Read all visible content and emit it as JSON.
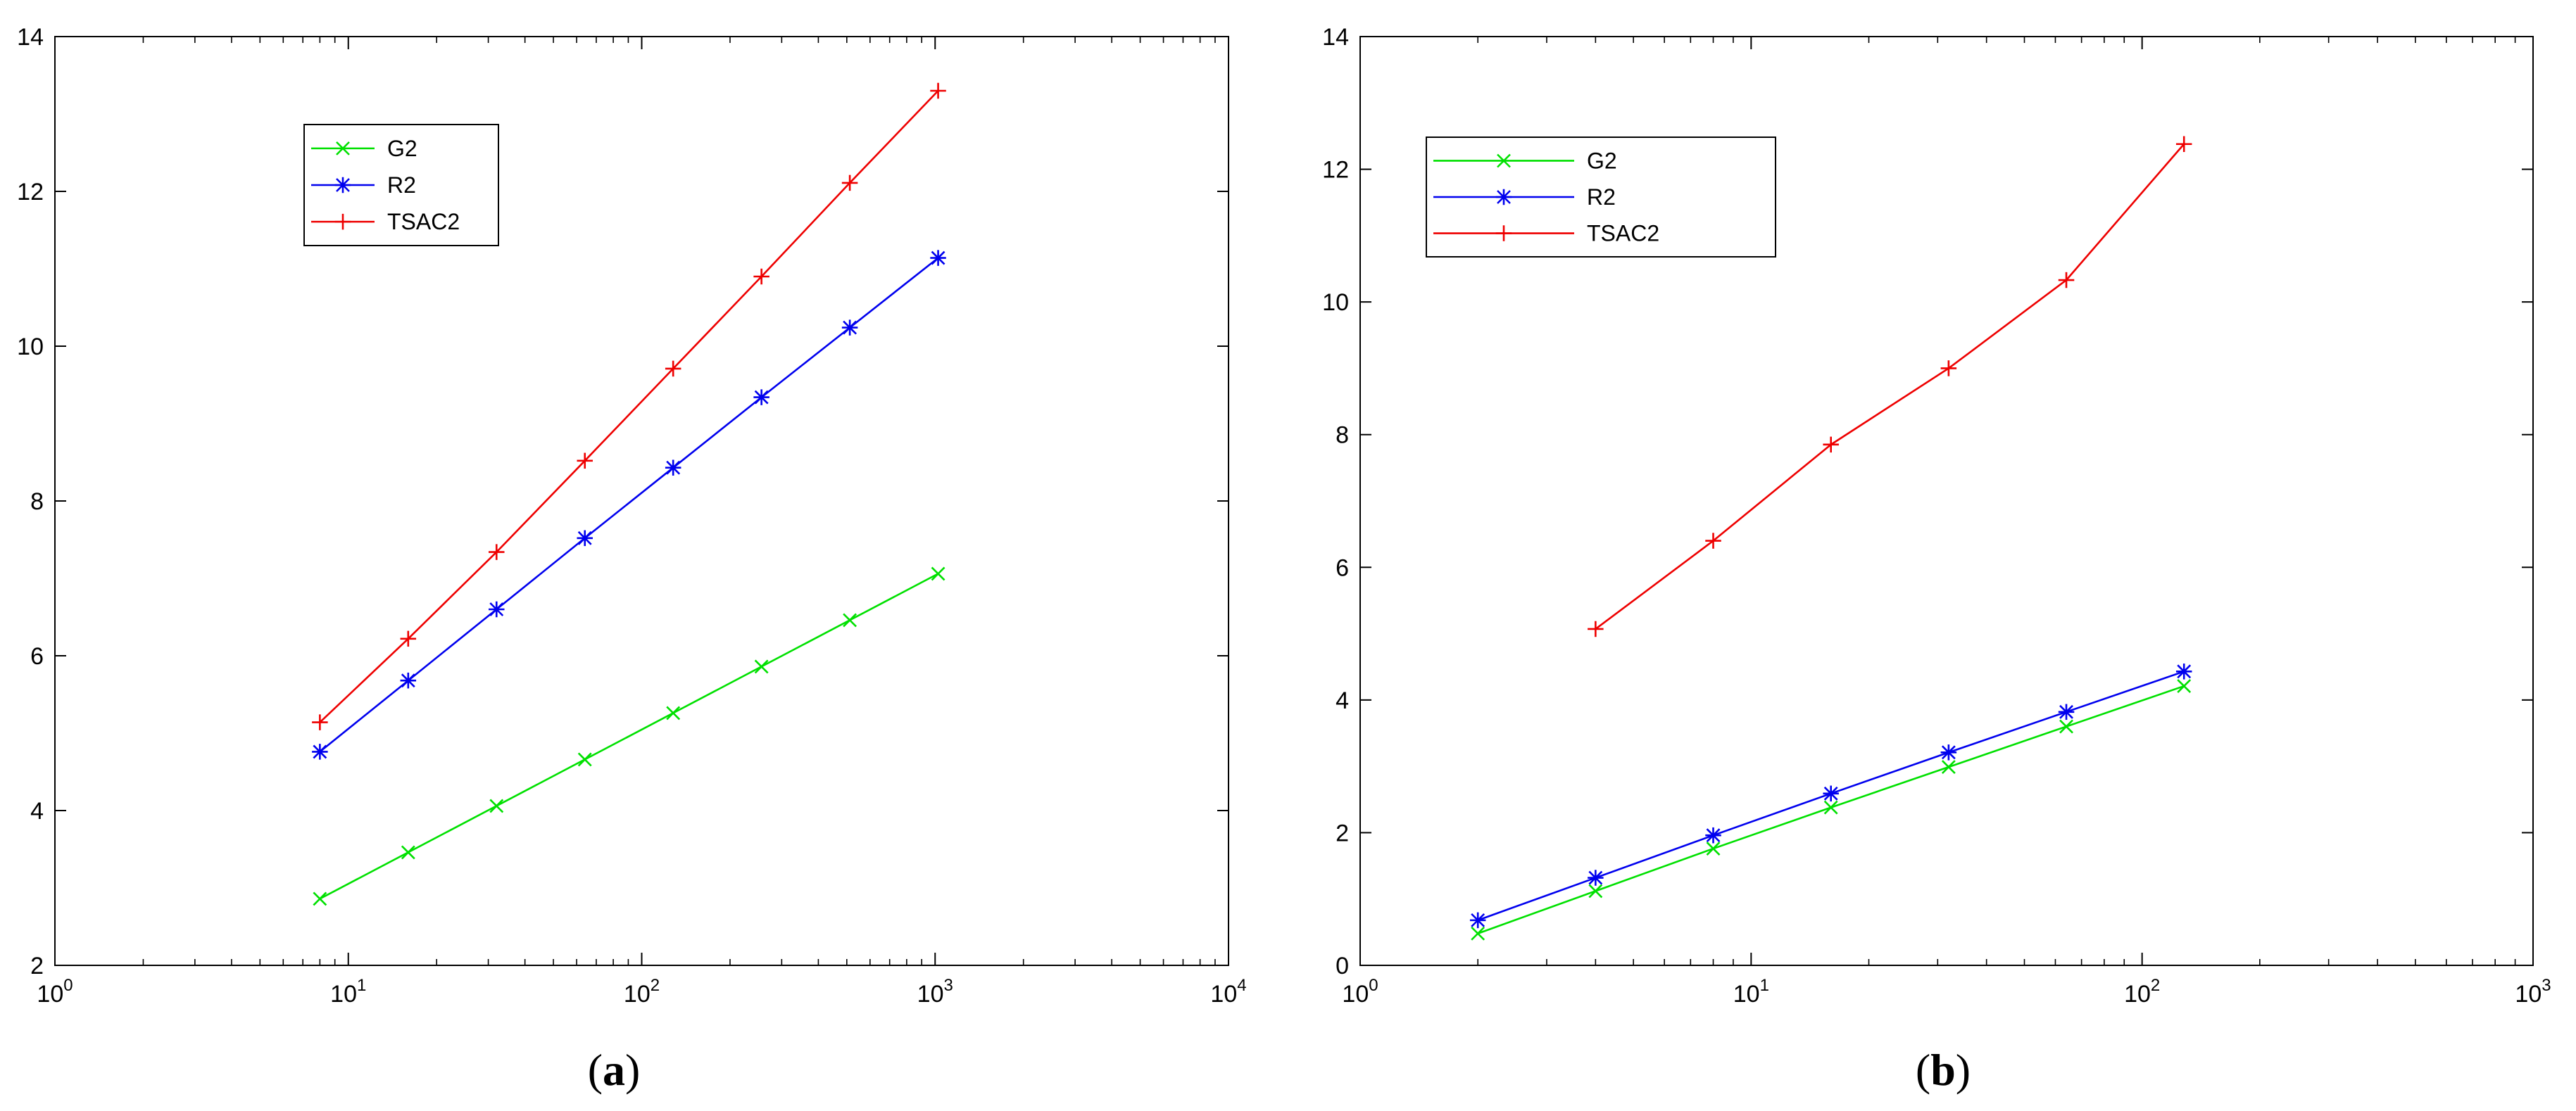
{
  "chart_data": [
    {
      "type": "line",
      "panel_label": "(a)",
      "xscale": "log",
      "xlim": [
        1,
        10000
      ],
      "ylim": [
        2,
        14
      ],
      "x_ticks": [
        1,
        10,
        100,
        1000,
        10000
      ],
      "x_tick_labels": [
        {
          "base": "10",
          "exp": "0"
        },
        {
          "base": "10",
          "exp": "1"
        },
        {
          "base": "10",
          "exp": "2"
        },
        {
          "base": "10",
          "exp": "3"
        },
        {
          "base": "10",
          "exp": "4"
        }
      ],
      "y_ticks": [
        "2",
        "4",
        "6",
        "8",
        "10",
        "12",
        "14"
      ],
      "legend_position": "top-left",
      "grid": false,
      "series": [
        {
          "name": "G2",
          "color": "#00e000",
          "marker": "x",
          "x": [
            8,
            16,
            32,
            64,
            128,
            256,
            512,
            1024
          ],
          "y": [
            2.86,
            3.46,
            4.06,
            4.66,
            5.26,
            5.86,
            6.46,
            7.06
          ]
        },
        {
          "name": "R2",
          "color": "#0000ee",
          "marker": "*",
          "x": [
            8,
            16,
            32,
            64,
            128,
            256,
            512,
            1024
          ],
          "y": [
            4.76,
            5.68,
            6.6,
            7.52,
            8.43,
            9.34,
            10.24,
            11.14
          ]
        },
        {
          "name": "TSAC2",
          "color": "#ee0000",
          "marker": "+",
          "x": [
            8,
            16,
            32,
            64,
            128,
            256,
            512,
            1024
          ],
          "y": [
            5.14,
            6.22,
            7.34,
            8.52,
            9.71,
            10.9,
            12.11,
            13.3
          ]
        }
      ]
    },
    {
      "type": "line",
      "panel_label": "(b)",
      "xscale": "log",
      "xlim": [
        1,
        1000
      ],
      "ylim": [
        0,
        14
      ],
      "x_ticks": [
        1,
        10,
        100,
        1000
      ],
      "x_tick_labels": [
        {
          "base": "10",
          "exp": "0"
        },
        {
          "base": "10",
          "exp": "1"
        },
        {
          "base": "10",
          "exp": "2"
        },
        {
          "base": "10",
          "exp": "3"
        }
      ],
      "y_ticks": [
        "0",
        "2",
        "4",
        "6",
        "8",
        "10",
        "12",
        "14"
      ],
      "legend_position": "top-left",
      "grid": false,
      "series": [
        {
          "name": "G2",
          "color": "#00e000",
          "marker": "x",
          "x": [
            2,
            4,
            8,
            16,
            32,
            64,
            128
          ],
          "y": [
            0.48,
            1.12,
            1.76,
            2.38,
            2.99,
            3.6,
            4.21
          ]
        },
        {
          "name": "R2",
          "color": "#0000ee",
          "marker": "*",
          "x": [
            2,
            4,
            8,
            16,
            32,
            64,
            128
          ],
          "y": [
            0.68,
            1.32,
            1.96,
            2.59,
            3.21,
            3.82,
            4.43
          ]
        },
        {
          "name": "TSAC2",
          "color": "#ee0000",
          "marker": "+",
          "x": [
            4,
            8,
            16,
            32,
            64,
            128
          ],
          "y": [
            5.07,
            6.4,
            7.85,
            9.0,
            10.33,
            12.38
          ]
        }
      ]
    }
  ]
}
